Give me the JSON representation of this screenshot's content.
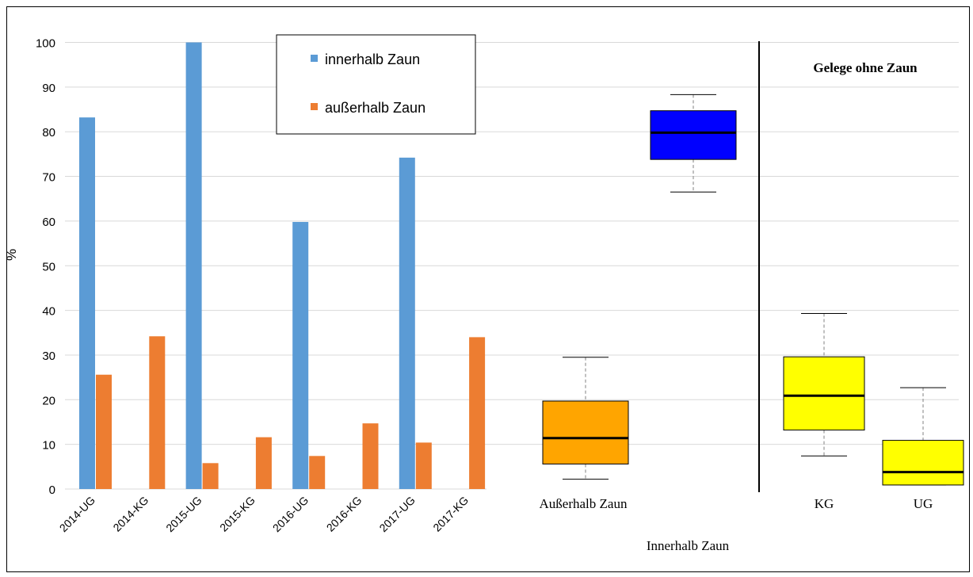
{
  "chart_data": [
    {
      "type": "bar",
      "ylabel": "%",
      "ylim": [
        0,
        100
      ],
      "yticks": [
        0,
        10,
        20,
        30,
        40,
        50,
        60,
        70,
        80,
        90,
        100
      ],
      "grid": true,
      "legend_placement": "top",
      "categories": [
        "2014-UG",
        "2014-KG",
        "2015-UG",
        "2015-KG",
        "2016-UG",
        "2016-KG",
        "2017-UG",
        "2017-KG"
      ],
      "series": [
        {
          "name": "innerhalb Zaun",
          "color": "#5b9bd5",
          "values": [
            83.2,
            null,
            100,
            null,
            59.8,
            null,
            74.2,
            null
          ]
        },
        {
          "name": "außerhalb Zaun",
          "color": "#ed7d31",
          "values": [
            25.6,
            34.2,
            5.8,
            11.6,
            7.4,
            14.7,
            10.4,
            34.0
          ]
        }
      ]
    },
    {
      "type": "box",
      "title": "",
      "boxes": [
        {
          "label": "Außerhalb Zaun",
          "color": "#ffa500",
          "min": 2.2,
          "q1": 5.6,
          "median": 11.4,
          "q3": 19.7,
          "max": 29.5
        },
        {
          "label": "Innerhalb Zaun",
          "color": "#0000ff",
          "min": 66.5,
          "q1": 73.8,
          "median": 79.8,
          "q3": 84.7,
          "max": 88.3
        }
      ]
    },
    {
      "type": "box",
      "title": "Gelege ohne Zaun",
      "boxes": [
        {
          "label": "KG",
          "color": "#ffff00",
          "min": 7.4,
          "q1": 13.2,
          "median": 20.9,
          "q3": 29.6,
          "max": 39.3
        },
        {
          "label": "UG",
          "color": "#ffff00",
          "min": 0.9,
          "q1": 0.9,
          "median": 3.8,
          "q3": 10.9,
          "max": 22.7
        }
      ]
    }
  ]
}
